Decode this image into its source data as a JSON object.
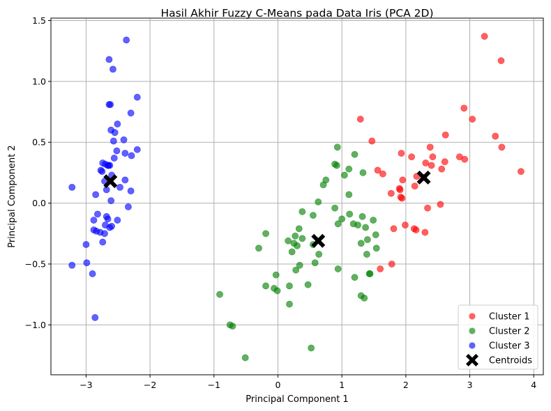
{
  "chart_data": {
    "type": "scatter",
    "title": "Hasil Akhir Fuzzy C-Means pada Data Iris (PCA 2D)",
    "xlabel": "Principal Component 1",
    "ylabel": "Principal Component 2",
    "xlim": [
      -3.55,
      4.15
    ],
    "ylim": [
      -1.41,
      1.52
    ],
    "xticks": [
      -3,
      -2,
      -1,
      0,
      1,
      2,
      3,
      4
    ],
    "xtick_labels": [
      "−3",
      "−2",
      "−1",
      "0",
      "1",
      "2",
      "3",
      "4"
    ],
    "yticks": [
      -1.0,
      -0.5,
      0.0,
      0.5,
      1.0,
      1.5
    ],
    "ytick_labels": [
      "−1.0",
      "−0.5",
      "0.0",
      "0.5",
      "1.0",
      "1.5"
    ],
    "grid": true,
    "legend_position": "bottom-right",
    "series": [
      {
        "name": "Cluster 1",
        "color": "#ff0000",
        "points": [
          [
            3.23,
            1.37
          ],
          [
            3.49,
            1.17
          ],
          [
            2.91,
            0.78
          ],
          [
            3.04,
            0.69
          ],
          [
            2.62,
            0.56
          ],
          [
            1.29,
            0.69
          ],
          [
            1.47,
            0.51
          ],
          [
            2.38,
            0.46
          ],
          [
            3.4,
            0.55
          ],
          [
            3.5,
            0.46
          ],
          [
            2.09,
            0.38
          ],
          [
            2.42,
            0.38
          ],
          [
            1.93,
            0.41
          ],
          [
            2.84,
            0.38
          ],
          [
            2.92,
            0.36
          ],
          [
            2.61,
            0.34
          ],
          [
            2.31,
            0.33
          ],
          [
            2.4,
            0.31
          ],
          [
            2.56,
            0.28
          ],
          [
            1.56,
            0.27
          ],
          [
            1.64,
            0.24
          ],
          [
            3.8,
            0.26
          ],
          [
            2.17,
            0.22
          ],
          [
            2.28,
            0.21
          ],
          [
            1.95,
            0.19
          ],
          [
            2.14,
            0.14
          ],
          [
            1.9,
            0.12
          ],
          [
            1.91,
            0.11
          ],
          [
            1.77,
            0.08
          ],
          [
            1.92,
            0.05
          ],
          [
            1.94,
            0.04
          ],
          [
            2.54,
            -0.01
          ],
          [
            2.34,
            -0.04
          ],
          [
            1.99,
            -0.18
          ],
          [
            1.81,
            -0.21
          ],
          [
            2.13,
            -0.21
          ],
          [
            2.16,
            -0.22
          ],
          [
            2.3,
            -0.24
          ],
          [
            1.6,
            -0.54
          ],
          [
            1.78,
            -0.5
          ]
        ]
      },
      {
        "name": "Cluster 2",
        "color": "#008000",
        "points": [
          [
            0.93,
            0.46
          ],
          [
            1.2,
            0.4
          ],
          [
            0.89,
            0.32
          ],
          [
            0.92,
            0.31
          ],
          [
            1.11,
            0.28
          ],
          [
            1.33,
            0.25
          ],
          [
            1.04,
            0.23
          ],
          [
            0.75,
            0.19
          ],
          [
            0.71,
            0.15
          ],
          [
            1.11,
            0.07
          ],
          [
            0.63,
            0.01
          ],
          [
            0.89,
            -0.04
          ],
          [
            0.55,
            -0.1
          ],
          [
            0.38,
            -0.07
          ],
          [
            1.0,
            -0.13
          ],
          [
            1.12,
            -0.09
          ],
          [
            1.32,
            -0.11
          ],
          [
            1.49,
            -0.14
          ],
          [
            0.94,
            -0.17
          ],
          [
            1.18,
            -0.17
          ],
          [
            1.25,
            -0.18
          ],
          [
            1.37,
            -0.2
          ],
          [
            1.53,
            -0.26
          ],
          [
            0.33,
            -0.21
          ],
          [
            -0.19,
            -0.25
          ],
          [
            0.27,
            -0.27
          ],
          [
            0.16,
            -0.31
          ],
          [
            0.38,
            -0.29
          ],
          [
            0.25,
            -0.33
          ],
          [
            0.55,
            -0.34
          ],
          [
            0.3,
            -0.35
          ],
          [
            1.3,
            -0.33
          ],
          [
            1.4,
            -0.3
          ],
          [
            1.54,
            -0.37
          ],
          [
            -0.3,
            -0.37
          ],
          [
            0.22,
            -0.4
          ],
          [
            0.64,
            -0.42
          ],
          [
            1.39,
            -0.42
          ],
          [
            0.58,
            -0.49
          ],
          [
            0.34,
            -0.51
          ],
          [
            0.94,
            -0.54
          ],
          [
            0.28,
            -0.55
          ],
          [
            1.43,
            -0.58
          ],
          [
            1.44,
            -0.58
          ],
          [
            -0.03,
            -0.59
          ],
          [
            1.2,
            -0.61
          ],
          [
            0.47,
            -0.67
          ],
          [
            0.18,
            -0.68
          ],
          [
            -0.19,
            -0.68
          ],
          [
            -0.06,
            -0.7
          ],
          [
            -0.01,
            -0.72
          ],
          [
            1.3,
            -0.76
          ],
          [
            1.35,
            -0.78
          ],
          [
            -0.91,
            -0.75
          ],
          [
            0.18,
            -0.83
          ],
          [
            -0.75,
            -1.0
          ],
          [
            -0.71,
            -1.01
          ],
          [
            0.52,
            -1.19
          ],
          [
            -0.51,
            -1.27
          ]
        ]
      },
      {
        "name": "Cluster 3",
        "color": "#0000ff",
        "points": [
          [
            -2.37,
            1.34
          ],
          [
            -2.64,
            1.18
          ],
          [
            -2.58,
            1.1
          ],
          [
            -2.2,
            0.87
          ],
          [
            -2.64,
            0.81
          ],
          [
            -2.62,
            0.81
          ],
          [
            -2.3,
            0.74
          ],
          [
            -2.51,
            0.65
          ],
          [
            -2.61,
            0.6
          ],
          [
            -2.55,
            0.58
          ],
          [
            -2.41,
            0.52
          ],
          [
            -2.57,
            0.51
          ],
          [
            -2.52,
            0.43
          ],
          [
            -2.2,
            0.44
          ],
          [
            -2.39,
            0.41
          ],
          [
            -2.29,
            0.39
          ],
          [
            -2.56,
            0.37
          ],
          [
            -2.74,
            0.33
          ],
          [
            -2.7,
            0.32
          ],
          [
            -2.63,
            0.31
          ],
          [
            -2.65,
            0.31
          ],
          [
            -2.66,
            0.31
          ],
          [
            -2.77,
            0.27
          ],
          [
            -2.75,
            0.26
          ],
          [
            -2.6,
            0.23
          ],
          [
            -2.71,
            0.18
          ],
          [
            -2.39,
            0.19
          ],
          [
            -2.47,
            0.13
          ],
          [
            -2.68,
            0.11
          ],
          [
            -3.22,
            0.13
          ],
          [
            -2.3,
            0.1
          ],
          [
            -2.85,
            0.07
          ],
          [
            -2.61,
            0.02
          ],
          [
            -2.34,
            -0.03
          ],
          [
            -2.82,
            -0.09
          ],
          [
            -2.68,
            -0.11
          ],
          [
            -2.66,
            -0.13
          ],
          [
            -2.88,
            -0.14
          ],
          [
            -2.51,
            -0.14
          ],
          [
            -2.7,
            -0.18
          ],
          [
            -2.6,
            -0.19
          ],
          [
            -2.63,
            -0.2
          ],
          [
            -2.84,
            -0.23
          ],
          [
            -2.78,
            -0.24
          ],
          [
            -2.71,
            -0.25
          ],
          [
            -2.88,
            -0.22
          ],
          [
            -2.74,
            -0.32
          ],
          [
            -3.0,
            -0.34
          ],
          [
            -2.99,
            -0.49
          ],
          [
            -3.22,
            -0.51
          ],
          [
            -2.9,
            -0.58
          ],
          [
            -2.86,
            -0.94
          ]
        ]
      }
    ],
    "centroids": {
      "name": "Centroids",
      "color": "#000000",
      "marker": "X",
      "points": [
        [
          2.28,
          0.21
        ],
        [
          0.63,
          -0.31
        ],
        [
          -2.62,
          0.18
        ]
      ]
    },
    "legend": [
      {
        "label": "Cluster 1",
        "color": "#ff0000",
        "marker": "circle"
      },
      {
        "label": "Cluster 2",
        "color": "#008000",
        "marker": "circle"
      },
      {
        "label": "Cluster 3",
        "color": "#0000ff",
        "marker": "circle"
      },
      {
        "label": "Centroids",
        "color": "#000000",
        "marker": "X"
      }
    ]
  }
}
